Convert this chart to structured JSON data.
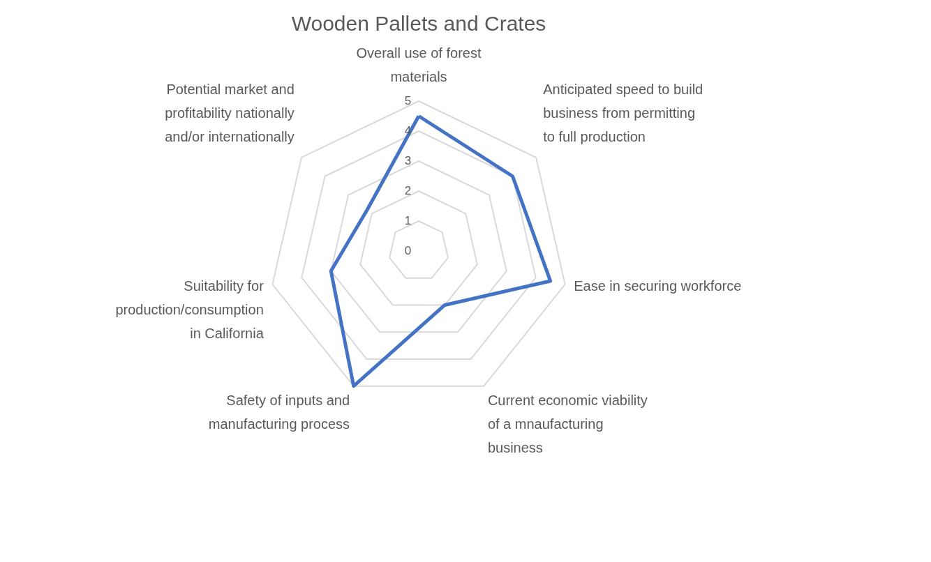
{
  "chart_data": {
    "type": "radar",
    "title": "Wooden Pallets and Crates",
    "categories": [
      "Overall use of forest\nmaterials",
      "Anticipated speed to build\nbusiness from permitting\nto full production",
      "Ease in securing workforce",
      "Current economic viability\nof a mnaufacturing\nbusiness",
      "Safety of inputs and\nmanufacturing process",
      "Suitability for\nproduction/consumption\nin California",
      "Potential market and\nprofitability nationally\nand/or internationally"
    ],
    "series": [
      {
        "color": "#4472c4",
        "values": [
          4.5,
          4,
          4.5,
          2,
          5,
          3,
          2.2
        ]
      }
    ],
    "ylim": [
      0,
      5
    ],
    "yticks": [
      0,
      1,
      2,
      3,
      4,
      5
    ],
    "grid": true
  }
}
